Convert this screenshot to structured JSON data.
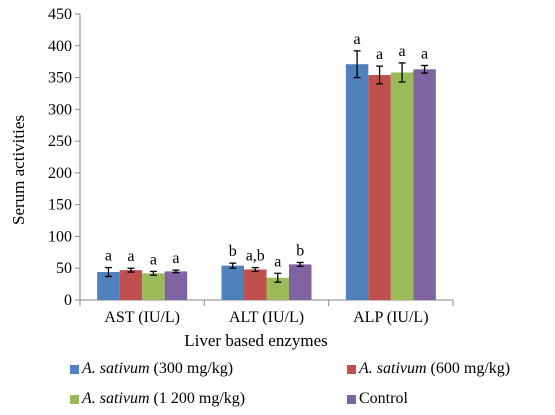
{
  "chart_data": {
    "type": "bar",
    "xlabel": "Liver based enzymes",
    "ylabel": "Serum activities",
    "ylim": [
      0,
      450
    ],
    "yticks": [
      "0",
      "50",
      "100",
      "150",
      "200",
      "250",
      "300",
      "350",
      "400",
      "450"
    ],
    "categories": [
      "AST (IU/L)",
      "ALT (IU/L)",
      "ALP (IU/L)"
    ],
    "series": [
      {
        "name_italic": "A. sativum",
        "name_rest": " (300 mg/kg)",
        "color": "#4f81bd",
        "values": [
          44,
          54,
          371
        ],
        "errors": [
          7,
          4,
          21
        ],
        "labels": [
          "a",
          "b",
          "a"
        ]
      },
      {
        "name_italic": "A. sativum",
        "name_rest": " (600 mg/kg)",
        "color": "#c0504d",
        "values": [
          47,
          48,
          354
        ],
        "errors": [
          3,
          3,
          14
        ],
        "labels": [
          "a",
          "a,b",
          "a"
        ]
      },
      {
        "name_italic": "A. sativum",
        "name_rest": " (1 200 mg/kg)",
        "color": "#9bbb59",
        "values": [
          42,
          35,
          358
        ],
        "errors": [
          3,
          7,
          15
        ],
        "labels": [
          "a",
          "a",
          "a"
        ]
      },
      {
        "name_italic": "",
        "name_rest": "Control",
        "color": "#8064a2",
        "values": [
          45,
          56,
          363
        ],
        "errors": [
          2,
          3,
          6
        ],
        "labels": [
          "a",
          "b",
          "a"
        ]
      }
    ],
    "legend_position": "bottom",
    "grid": false
  }
}
